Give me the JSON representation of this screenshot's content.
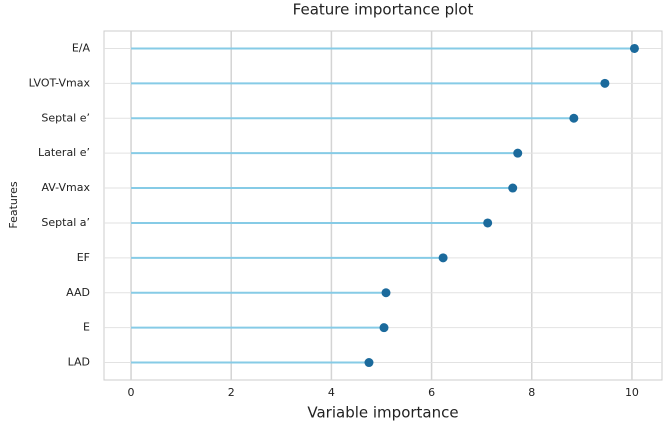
{
  "chart_data": {
    "type": "lollipop",
    "title": "Feature importance plot",
    "x_label": "Variable importance",
    "y_label": "Features",
    "categories": [
      "E/A",
      "LVOT-Vmax",
      "Septal e’",
      "Lateral e’",
      "AV-Vmax",
      "Septal a’",
      "EF",
      "AAD",
      "E",
      "LAD"
    ],
    "values": [
      10.05,
      9.46,
      8.84,
      7.72,
      7.62,
      7.12,
      6.23,
      5.09,
      5.05,
      4.75
    ],
    "stem_color": "#86cbe6",
    "dot_color": "#1b6a9c",
    "xlim": [
      -0.54,
      10.6
    ],
    "xticks": [
      0,
      2,
      4,
      6,
      8,
      10
    ],
    "grid": true
  }
}
